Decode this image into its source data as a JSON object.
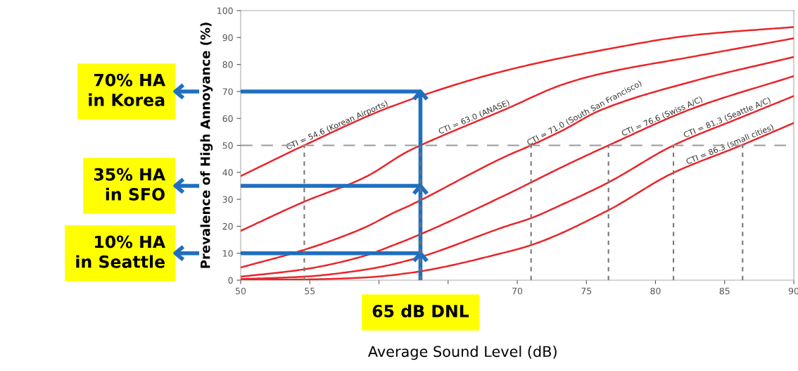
{
  "chart_data": {
    "type": "line",
    "xlabel": "Average Sound Level (dB)",
    "ylabel": "Prevalence of High Annoyance (%)",
    "xlim": [
      50,
      90
    ],
    "xticks": [
      50,
      55,
      {
        "value": 60,
        "label": null
      },
      {
        "value": 65,
        "label": null
      },
      70,
      75,
      80,
      85,
      90
    ],
    "ylim": [
      0,
      100
    ],
    "yticks": [
      0,
      10,
      20,
      30,
      40,
      50,
      60,
      70,
      80,
      90,
      100
    ],
    "grid": false,
    "marker": "none",
    "line_style": "solid",
    "series": [
      {
        "name": "CTI = 54.6 (Korean Airports)",
        "color": "#e8262a",
        "x": [
          50,
          54.55,
          61.1,
          69.2,
          76,
          82.8,
          90
        ],
        "values": [
          38.6,
          49.9,
          64.8,
          77.8,
          85.2,
          90.9,
          93.9
        ]
      },
      {
        "name": "CTI = 63.0 (ANASE)",
        "color": "#e8262a",
        "x": [
          50,
          54.55,
          59,
          62.1,
          63,
          69.2,
          73.3,
          76,
          82.8,
          90
        ],
        "values": [
          18.3,
          29,
          38.2,
          47.8,
          50,
          63.5,
          72.6,
          76.5,
          83,
          89.7
        ]
      },
      {
        "name": "CTI = 71.0 (South San Francisco)",
        "color": "#e8262a",
        "x": [
          50,
          54.55,
          59,
          61.1,
          62.1,
          69.2,
          71,
          73.3,
          76,
          82.8,
          90
        ],
        "values": [
          4.7,
          11.2,
          19.6,
          25.1,
          27.4,
          46,
          50,
          55.6,
          63,
          73.9,
          82.8
        ]
      },
      {
        "name": "CTI = 76.6 (Swiss A/C)",
        "color": "#e8262a",
        "x": [
          50,
          54.55,
          59,
          61.1,
          62.1,
          69.2,
          73.3,
          76.6,
          82.8,
          90
        ],
        "values": [
          1.3,
          4.0,
          9.1,
          13.1,
          15.1,
          31.7,
          42.1,
          50,
          63.9,
          75.7
        ]
      },
      {
        "name": "CTI = 81.3 (Seattle A/C)",
        "color": "#e8262a",
        "x": [
          50,
          54.55,
          59,
          62.1,
          69.2,
          71,
          73.3,
          76.5,
          81.3,
          86.2,
          90
        ],
        "values": [
          0.4,
          1.3,
          3.9,
          7.3,
          20,
          23,
          28.2,
          36,
          50,
          60.4,
          68.3
        ]
      },
      {
        "name": "CTI = 86.3 (small cities)",
        "color": "#e8262a",
        "x": [
          50,
          55,
          59,
          62.1,
          69.2,
          71,
          76.5,
          81.2,
          86.2,
          90
        ],
        "values": [
          0.1,
          0.3,
          1.0,
          2.6,
          10.4,
          13,
          25.7,
          39.6,
          50,
          58.3
        ]
      }
    ],
    "ref_lines": [
      {
        "axis": "y",
        "value": 50,
        "label": null,
        "color": "#999999",
        "line_style": "dashed"
      },
      {
        "axis": "x",
        "value": 54.6,
        "label": null,
        "color": "#777777",
        "line_style": "dotted"
      },
      {
        "axis": "x",
        "value": 63.0,
        "label": null,
        "color": "#777777",
        "line_style": "dotted"
      },
      {
        "axis": "x",
        "value": 71.0,
        "label": null,
        "color": "#777777",
        "line_style": "dotted"
      },
      {
        "axis": "x",
        "value": 76.6,
        "label": null,
        "color": "#777777",
        "line_style": "dotted"
      },
      {
        "axis": "x",
        "value": 81.3,
        "label": null,
        "color": "#777777",
        "line_style": "dotted"
      },
      {
        "axis": "x",
        "value": 86.3,
        "label": null,
        "color": "#777777",
        "line_style": "dotted"
      },
      {
        "axis": "y",
        "value": 70,
        "label": null,
        "color": "#1f6fc1",
        "line_style": "solid"
      },
      {
        "axis": "y",
        "value": 35,
        "label": null,
        "color": "#1f6fc1",
        "line_style": "solid"
      },
      {
        "axis": "y",
        "value": 10,
        "label": null,
        "color": "#1f6fc1",
        "line_style": "solid"
      },
      {
        "axis": "x",
        "value": 63,
        "label": null,
        "color": "#1f6fc1",
        "line_style": "solid"
      }
    ],
    "annotations": [
      "70% HA\nin Korea",
      "35% HA\nin SFO",
      "10% HA\nin Seattle",
      "65 dB DNL"
    ]
  }
}
